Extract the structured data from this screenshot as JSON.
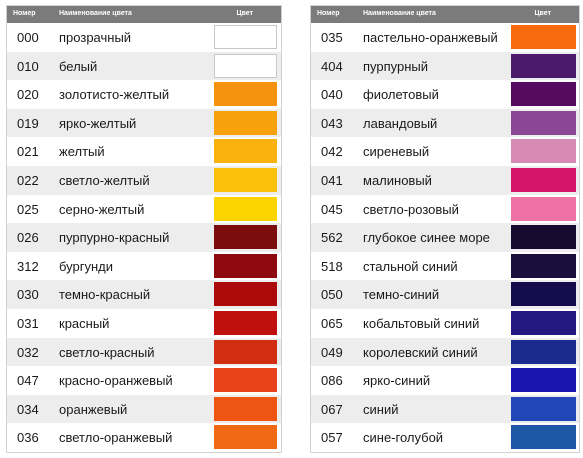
{
  "headers": {
    "number": "Номер",
    "name": "Наименование цвета",
    "color": "Цвет"
  },
  "left": [
    {
      "code": "000",
      "name": "прозрачный",
      "color": "#ffffff"
    },
    {
      "code": "010",
      "name": "белый",
      "color": "#ffffff"
    },
    {
      "code": "020",
      "name": "золотисто-желтый",
      "color": "#f5930e"
    },
    {
      "code": "019",
      "name": "ярко-желтый",
      "color": "#f7a20c"
    },
    {
      "code": "021",
      "name": "желтый",
      "color": "#f9b20e"
    },
    {
      "code": "022",
      "name": "светло-желтый",
      "color": "#fbc10a"
    },
    {
      "code": "025",
      "name": "серно-желтый",
      "color": "#fcd500"
    },
    {
      "code": "026",
      "name": "пурпурно-красный",
      "color": "#7c0d0f"
    },
    {
      "code": "312",
      "name": "бургунди",
      "color": "#8f0a0e"
    },
    {
      "code": "030",
      "name": "темно-красный",
      "color": "#ad0a0b"
    },
    {
      "code": "031",
      "name": "красный",
      "color": "#c0100d"
    },
    {
      "code": "032",
      "name": "светло-красный",
      "color": "#d12e12"
    },
    {
      "code": "047",
      "name": "красно-оранжевый",
      "color": "#e8421a"
    },
    {
      "code": "034",
      "name": "оранжевый",
      "color": "#ee5512"
    },
    {
      "code": "036",
      "name": "светло-оранжевый",
      "color": "#f06a16"
    }
  ],
  "right": [
    {
      "code": "035",
      "name": "пастельно-оранжевый",
      "color": "#f86a0e"
    },
    {
      "code": "404",
      "name": "пурпурный",
      "color": "#4c1a6a"
    },
    {
      "code": "040",
      "name": "фиолетовый",
      "color": "#570b60"
    },
    {
      "code": "043",
      "name": "лавандовый",
      "color": "#8a4796"
    },
    {
      "code": "042",
      "name": "сиреневый",
      "color": "#d68ab4"
    },
    {
      "code": "041",
      "name": "малиновый",
      "color": "#d41568"
    },
    {
      "code": "045",
      "name": "светло-розовый",
      "color": "#ee72a6"
    },
    {
      "code": "562",
      "name": "глубокое синее море",
      "color": "#160a30"
    },
    {
      "code": "518",
      "name": "стальной синий",
      "color": "#1a0e3c"
    },
    {
      "code": "050",
      "name": "темно-синий",
      "color": "#140c4c"
    },
    {
      "code": "065",
      "name": "кобальтовый синий",
      "color": "#241882"
    },
    {
      "code": "049",
      "name": "королевский синий",
      "color": "#1a2a8c"
    },
    {
      "code": "086",
      "name": "ярко-синий",
      "color": "#1a14b0"
    },
    {
      "code": "067",
      "name": "синий",
      "color": "#2046b8"
    },
    {
      "code": "057",
      "name": "сине-голубой",
      "color": "#1c58a6"
    }
  ]
}
